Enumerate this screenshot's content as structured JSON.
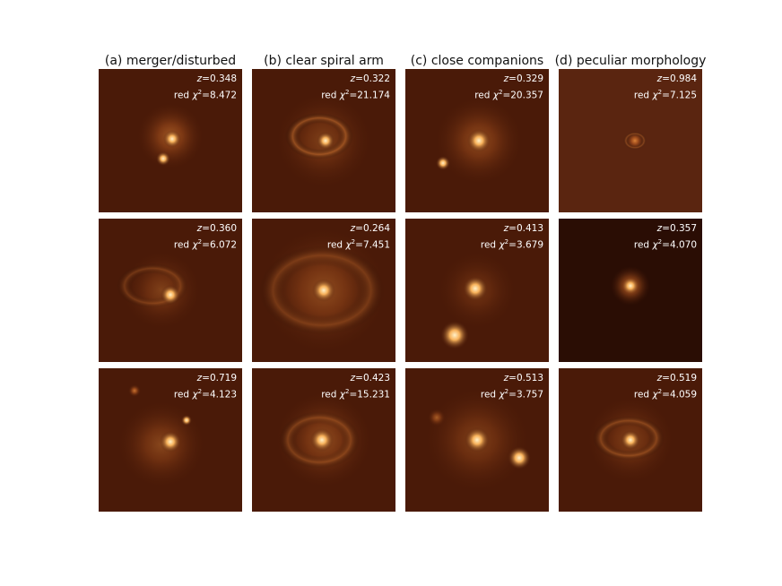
{
  "columns": [
    {
      "title": "(a) merger/disturbed"
    },
    {
      "title": "(b) clear spiral arm"
    },
    {
      "title": "(c) close companions"
    },
    {
      "title": "(d) peculiar morphology"
    }
  ],
  "label_parts": {
    "z_symbol": "z",
    "chi_prefix": "red ",
    "chi_symbol": "χ",
    "chi_power": "2"
  },
  "panels": [
    {
      "id": "a1",
      "z": "=0.348",
      "chi": "=8.472"
    },
    {
      "id": "b1",
      "z": "=0.322",
      "chi": "=21.174"
    },
    {
      "id": "c1",
      "z": "=0.329",
      "chi": "=20.357"
    },
    {
      "id": "d1",
      "z": "=0.984",
      "chi": "=7.125"
    },
    {
      "id": "a2",
      "z": "=0.360",
      "chi": "=6.072"
    },
    {
      "id": "b2",
      "z": "=0.264",
      "chi": "=7.451"
    },
    {
      "id": "c2",
      "z": "=0.413",
      "chi": "=3.679"
    },
    {
      "id": "d2",
      "z": "=0.357",
      "chi": "=4.070"
    },
    {
      "id": "a3",
      "z": "=0.719",
      "chi": "=4.123"
    },
    {
      "id": "b3",
      "z": "=0.423",
      "chi": "=15.231"
    },
    {
      "id": "c3",
      "z": "=0.513",
      "chi": "=3.757"
    },
    {
      "id": "d3",
      "z": "=0.519",
      "chi": "=4.059"
    }
  ],
  "colors": {
    "background": "#4a1a08",
    "glow": "#b65a1c",
    "core": "#fff0c8"
  }
}
